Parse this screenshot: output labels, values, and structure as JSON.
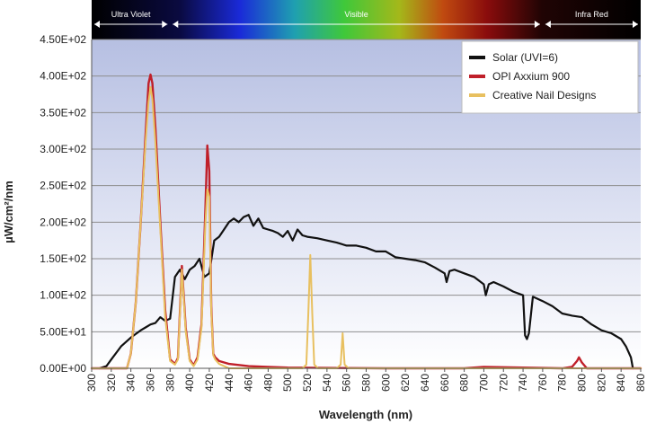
{
  "chart_data": {
    "type": "line",
    "xlabel": "Wavelength (nm)",
    "ylabel": "µW/cm²/nm",
    "xlim": [
      300,
      860
    ],
    "ylim": [
      0,
      450
    ],
    "xticks": [
      300,
      320,
      340,
      360,
      380,
      400,
      420,
      440,
      460,
      480,
      500,
      520,
      540,
      560,
      580,
      600,
      620,
      640,
      660,
      680,
      700,
      720,
      740,
      760,
      780,
      800,
      820,
      840,
      860
    ],
    "yticks": [
      {
        "value": 0,
        "label": "0.00E+00"
      },
      {
        "value": 50,
        "label": "5.00E+01"
      },
      {
        "value": 100,
        "label": "1.00E+02"
      },
      {
        "value": 150,
        "label": "1.50E+02"
      },
      {
        "value": 200,
        "label": "2.00E+02"
      },
      {
        "value": 250,
        "label": "2.50E+02"
      },
      {
        "value": 300,
        "label": "3.00E+02"
      },
      {
        "value": 350,
        "label": "3.50E+02"
      },
      {
        "value": 400,
        "label": "4.00E+02"
      },
      {
        "value": 450,
        "label": "4.50E+02"
      }
    ],
    "grid": "horizontal",
    "legend_position": "top-right",
    "spectrum_bands": [
      {
        "label": "Ultra Violet",
        "from": 300,
        "to": 380
      },
      {
        "label": "Visible",
        "from": 380,
        "to": 760
      },
      {
        "label": "Infra Red",
        "from": 760,
        "to": 860
      }
    ],
    "series": [
      {
        "name": "Solar (UVI=6)",
        "color": "#111111",
        "x": [
          308,
          315,
          320,
          330,
          340,
          350,
          355,
          360,
          365,
          370,
          375,
          380,
          385,
          390,
          395,
          400,
          405,
          410,
          415,
          420,
          425,
          430,
          435,
          440,
          445,
          450,
          455,
          460,
          465,
          470,
          475,
          480,
          485,
          490,
          495,
          500,
          505,
          510,
          515,
          520,
          530,
          540,
          550,
          560,
          570,
          580,
          590,
          600,
          610,
          620,
          630,
          640,
          650,
          660,
          662,
          665,
          670,
          680,
          690,
          700,
          702,
          705,
          710,
          720,
          730,
          740,
          742,
          744,
          746,
          750,
          760,
          770,
          780,
          790,
          800,
          810,
          820,
          830,
          840,
          845,
          850,
          852
        ],
        "y": [
          0,
          3,
          12,
          30,
          42,
          52,
          56,
          60,
          62,
          70,
          65,
          68,
          125,
          135,
          122,
          135,
          140,
          150,
          125,
          130,
          175,
          180,
          190,
          200,
          205,
          200,
          207,
          210,
          195,
          205,
          192,
          190,
          188,
          185,
          180,
          188,
          175,
          190,
          182,
          180,
          178,
          175,
          172,
          168,
          168,
          165,
          160,
          160,
          152,
          150,
          148,
          145,
          138,
          130,
          118,
          133,
          135,
          130,
          125,
          115,
          100,
          115,
          118,
          112,
          105,
          100,
          45,
          40,
          48,
          98,
          92,
          85,
          75,
          72,
          70,
          60,
          52,
          48,
          40,
          30,
          15,
          0
        ]
      },
      {
        "name": "OPI Axxium 900",
        "color": "#c0202a",
        "x": [
          300,
          336,
          340,
          345,
          350,
          355,
          358,
          360,
          362,
          365,
          370,
          375,
          380,
          385,
          388,
          392,
          396,
          400,
          404,
          408,
          412,
          416,
          418,
          420,
          422,
          424,
          426,
          430,
          440,
          460,
          480,
          500,
          600,
          680,
          700,
          780,
          790,
          795,
          797,
          800,
          805,
          850,
          860
        ],
        "y": [
          0,
          0,
          20,
          90,
          200,
          320,
          390,
          402,
          390,
          330,
          200,
          80,
          12,
          6,
          14,
          140,
          55,
          12,
          4,
          15,
          60,
          220,
          305,
          270,
          85,
          20,
          15,
          10,
          6,
          3,
          2,
          1,
          0,
          0,
          2,
          0,
          2,
          10,
          15,
          8,
          0,
          0,
          0
        ]
      },
      {
        "name": "Creative Nail Designs",
        "color": "#e8c060",
        "x": [
          300,
          336,
          340,
          345,
          350,
          355,
          358,
          360,
          362,
          365,
          370,
          375,
          380,
          385,
          388,
          392,
          396,
          400,
          404,
          408,
          412,
          416,
          418,
          420,
          422,
          424,
          426,
          430,
          440,
          515,
          519,
          521,
          523,
          525,
          527,
          531,
          550,
          554,
          556,
          558,
          562,
          860
        ],
        "y": [
          0,
          0,
          20,
          90,
          200,
          310,
          365,
          385,
          368,
          310,
          190,
          70,
          10,
          5,
          12,
          135,
          50,
          10,
          3,
          12,
          55,
          200,
          245,
          235,
          80,
          18,
          12,
          6,
          0,
          0,
          5,
          75,
          155,
          75,
          5,
          0,
          0,
          5,
          48,
          5,
          0,
          0
        ]
      }
    ]
  }
}
